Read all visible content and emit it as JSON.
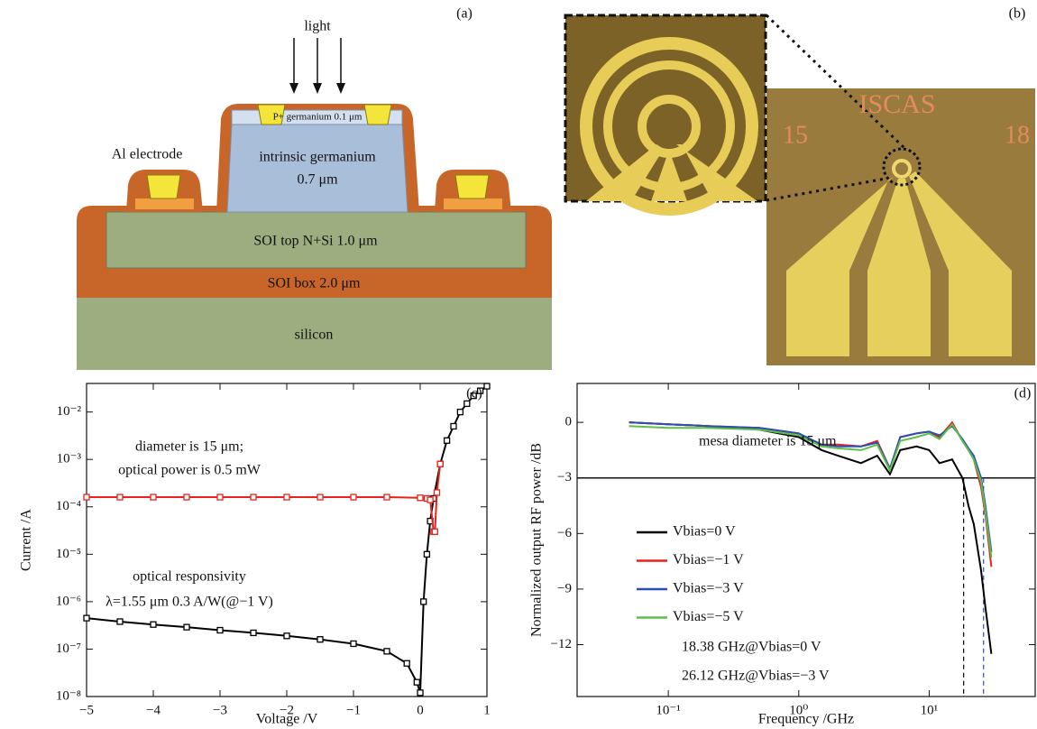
{
  "diagram": {
    "panel": "(a)",
    "light": "light",
    "p_layer": "P+ germanium 0.1 μm",
    "intrinsic": "intrinsic germanium",
    "intrinsic_thickness": "0.7 μm",
    "electrode": "Al electrode",
    "top_si": "SOI top N+Si 1.0 μm",
    "box": "SOI box 2.0 μm",
    "substrate": "silicon"
  },
  "photo": {
    "panel": "(b)",
    "chip_text": "ISCAS",
    "left_number": "15",
    "right_number": "18"
  },
  "chart_data": [
    {
      "type": "line",
      "panel": "(c)",
      "xlabel": "Voltage /V",
      "ylabel": "Current /A",
      "yscale": "log",
      "xlim": [
        -5,
        1
      ],
      "ylim": [
        1e-08,
        0.04
      ],
      "xticks": [
        {
          "value": -5,
          "label": "−5"
        },
        {
          "value": -4,
          "label": "−4"
        },
        {
          "value": -3,
          "label": "−3"
        },
        {
          "value": -2,
          "label": "−2"
        },
        {
          "value": -1,
          "label": "−1"
        },
        0,
        1
      ],
      "yticks": [
        {
          "value": 1e-08,
          "label": "10⁻⁸"
        },
        {
          "value": 1e-07,
          "label": "10⁻⁷"
        },
        {
          "value": 1e-06,
          "label": "10⁻⁶"
        },
        {
          "value": 1e-05,
          "label": "10⁻⁵"
        },
        {
          "value": 0.0001,
          "label": "10⁻⁴"
        },
        {
          "value": 0.001,
          "label": "10⁻³"
        },
        {
          "value": 0.01,
          "label": "10⁻²"
        }
      ],
      "annotations": [
        "diameter is 15 μm;",
        "optical power is 0.5 mW",
        "optical responsivity",
        "λ=1.55 μm 0.3 A/W(@−1 V)"
      ],
      "series": [
        {
          "color": "#000000",
          "marker": "square",
          "x": [
            -5,
            -4.5,
            -4,
            -3.5,
            -3,
            -2.5,
            -2,
            -1.5,
            -1,
            -0.5,
            -0.2,
            -0.05,
            0,
            0.05,
            0.1,
            0.15,
            0.2,
            0.3,
            0.4,
            0.5,
            0.6,
            0.7,
            0.8,
            0.9,
            1
          ],
          "values": [
            4.5e-07,
            3.8e-07,
            3.3e-07,
            2.9e-07,
            2.5e-07,
            2.2e-07,
            1.9e-07,
            1.6e-07,
            1.3e-07,
            9e-08,
            5e-08,
            2e-08,
            1.2e-08,
            1e-06,
            1e-05,
            5e-05,
            0.00015,
            0.0008,
            0.0025,
            0.005,
            0.01,
            0.015,
            0.022,
            0.028,
            0.035
          ]
        },
        {
          "color": "#e8221c",
          "marker": "square",
          "x": [
            -5,
            -4.5,
            -4,
            -3.5,
            -3,
            -2.5,
            -2,
            -1.5,
            -1,
            -0.5,
            0,
            0.1,
            0.15,
            0.2,
            0.22,
            0.25,
            0.3
          ],
          "values": [
            0.00016,
            0.00016,
            0.00016,
            0.00016,
            0.00016,
            0.00016,
            0.00016,
            0.00016,
            0.00016,
            0.00016,
            0.000155,
            0.00015,
            0.00014,
            3e-05,
            3e-05,
            0.0002,
            0.0008
          ]
        }
      ]
    },
    {
      "type": "line",
      "panel": "(d)",
      "xlabel": "Frequency /GHz",
      "ylabel": "Normalized output RF power /dB",
      "xscale": "log",
      "xlim": [
        0.02,
        65
      ],
      "ylim": [
        -14.8,
        2.1
      ],
      "xticks": [
        {
          "value": 0.1,
          "label": "10⁻¹"
        },
        {
          "value": 1,
          "label": "10⁰"
        },
        {
          "value": 10,
          "label": "10¹"
        }
      ],
      "yticks": [
        0,
        {
          "value": -3,
          "label": "−3"
        },
        {
          "value": -6,
          "label": "−6"
        },
        {
          "value": -9,
          "label": "−9"
        },
        {
          "value": -12,
          "label": "−12"
        }
      ],
      "hlines": [
        -3
      ],
      "vlines": [
        {
          "value": 18.38,
          "color": "#000000"
        },
        {
          "value": 26.12,
          "color": "#2d4fb5"
        }
      ],
      "annotations": [
        "mesa diameter is 15 μm",
        "18.38 GHz@Vbias=0 V",
        "26.12 GHz@Vbias=−3 V"
      ],
      "x": [
        0.05,
        0.1,
        0.2,
        0.5,
        1,
        1.5,
        2,
        3,
        4,
        5,
        6,
        8,
        10,
        12,
        15,
        18,
        20,
        22,
        25,
        27,
        30
      ],
      "series": [
        {
          "name": "Vbias=0 V",
          "color": "#000000",
          "values": [
            0,
            -0.1,
            -0.2,
            -0.4,
            -0.8,
            -1.5,
            -1.8,
            -2.2,
            -1.8,
            -2.8,
            -1.5,
            -1.3,
            -1.5,
            -2.2,
            -2,
            -3,
            -4.5,
            -5.5,
            -8,
            -10,
            -12.5
          ]
        },
        {
          "name": "Vbias=−1 V",
          "color": "#e8221c",
          "values": [
            0,
            -0.1,
            -0.2,
            -0.3,
            -0.6,
            -1.2,
            -1.2,
            -1.3,
            -1,
            -2.5,
            -0.8,
            -0.6,
            -0.5,
            -0.8,
            0,
            -1,
            -1.5,
            -2,
            -3.5,
            -5,
            -7.8
          ]
        },
        {
          "name": "Vbias=−3 V",
          "color": "#2d4fb5",
          "values": [
            0,
            -0.1,
            -0.2,
            -0.3,
            -0.6,
            -1.2,
            -1.3,
            -1.3,
            -1.1,
            -2.5,
            -0.8,
            -0.6,
            -0.5,
            -0.7,
            -0.2,
            -0.9,
            -1.4,
            -1.8,
            -3,
            -4.5,
            -7
          ]
        },
        {
          "name": "Vbias=−5 V",
          "color": "#5cc048",
          "values": [
            -0.2,
            -0.3,
            -0.3,
            -0.4,
            -0.7,
            -1.3,
            -1.4,
            -1.5,
            -1.2,
            -2.6,
            -1,
            -0.8,
            -0.6,
            -0.9,
            -0.1,
            -1,
            -1.5,
            -2,
            -3.2,
            -4.8,
            -7.3
          ]
        }
      ]
    }
  ]
}
